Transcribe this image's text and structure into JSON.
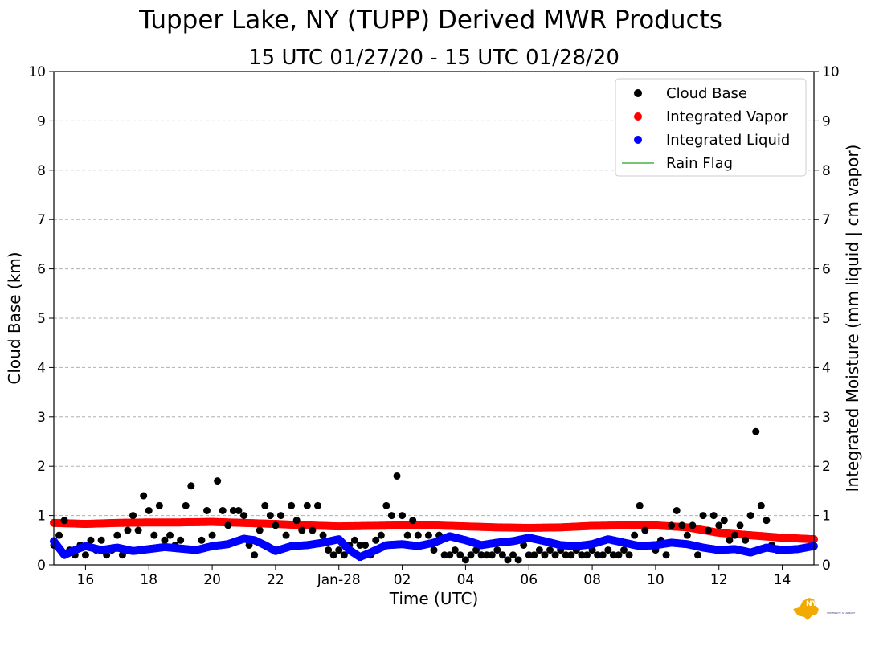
{
  "title": "Tupper Lake, NY (TUPP) Derived MWR Products",
  "subtitle": "15 UTC 01/27/20 - 15 UTC 01/28/20",
  "logo": {
    "text": "NYS Mesonet",
    "subtext": "UNIVERSITY AT ALBANY"
  },
  "chart_data": {
    "type": "scatter",
    "title": "Tupper Lake, NY (TUPP) Derived MWR Products",
    "subtitle": "15 UTC 01/27/20 - 15 UTC 01/28/20",
    "xlabel": "Time (UTC)",
    "ylabel": "Cloud Base (km)",
    "ylabel_right": "Integrated Moisture (mm liquid | cm vapor)",
    "x_range": [
      "2020-01-27 15:00",
      "2020-01-28 15:00"
    ],
    "x_ticks": [
      {
        "time": "2020-01-27 16:00",
        "label": "16"
      },
      {
        "time": "2020-01-27 18:00",
        "label": "18"
      },
      {
        "time": "2020-01-27 20:00",
        "label": "20"
      },
      {
        "time": "2020-01-27 22:00",
        "label": "22"
      },
      {
        "time": "2020-01-28 00:00",
        "label": "Jan-28"
      },
      {
        "time": "2020-01-28 02:00",
        "label": "02"
      },
      {
        "time": "2020-01-28 04:00",
        "label": "04"
      },
      {
        "time": "2020-01-28 06:00",
        "label": "06"
      },
      {
        "time": "2020-01-28 08:00",
        "label": "08"
      },
      {
        "time": "2020-01-28 10:00",
        "label": "10"
      },
      {
        "time": "2020-01-28 12:00",
        "label": "12"
      },
      {
        "time": "2020-01-28 14:00",
        "label": "14"
      }
    ],
    "ylim": [
      0,
      10
    ],
    "y_ticks": [
      "0",
      "1",
      "2",
      "3",
      "4",
      "5",
      "6",
      "7",
      "8",
      "9",
      "10"
    ],
    "ylim_right": [
      0,
      10
    ],
    "y_ticks_right": [
      "0",
      "1",
      "2",
      "3",
      "4",
      "5",
      "6",
      "7",
      "8",
      "9",
      "10"
    ],
    "grid": "horizontal dashed",
    "legend_position": "top-right",
    "series": [
      {
        "name": "Cloud Base",
        "color": "#000000",
        "marker": "circle",
        "points": [
          [
            "2020-01-27 15:00",
            0.4
          ],
          [
            "2020-01-27 15:10",
            0.6
          ],
          [
            "2020-01-27 15:20",
            0.9
          ],
          [
            "2020-01-27 15:30",
            0.3
          ],
          [
            "2020-01-27 15:40",
            0.2
          ],
          [
            "2020-01-27 15:50",
            0.4
          ],
          [
            "2020-01-27 16:00",
            0.2
          ],
          [
            "2020-01-27 16:10",
            0.5
          ],
          [
            "2020-01-27 16:20",
            0.3
          ],
          [
            "2020-01-27 16:30",
            0.5
          ],
          [
            "2020-01-27 16:40",
            0.2
          ],
          [
            "2020-01-27 16:50",
            0.3
          ],
          [
            "2020-01-27 17:00",
            0.6
          ],
          [
            "2020-01-27 17:10",
            0.2
          ],
          [
            "2020-01-27 17:20",
            0.7
          ],
          [
            "2020-01-27 17:30",
            1.0
          ],
          [
            "2020-01-27 17:40",
            0.7
          ],
          [
            "2020-01-27 17:50",
            1.4
          ],
          [
            "2020-01-27 18:00",
            1.1
          ],
          [
            "2020-01-27 18:10",
            0.6
          ],
          [
            "2020-01-27 18:20",
            1.2
          ],
          [
            "2020-01-27 18:30",
            0.5
          ],
          [
            "2020-01-27 18:40",
            0.6
          ],
          [
            "2020-01-27 18:50",
            0.4
          ],
          [
            "2020-01-27 19:00",
            0.5
          ],
          [
            "2020-01-27 19:10",
            1.2
          ],
          [
            "2020-01-27 19:20",
            1.6
          ],
          [
            "2020-01-27 19:30",
            0.3
          ],
          [
            "2020-01-27 19:40",
            0.5
          ],
          [
            "2020-01-27 19:50",
            1.1
          ],
          [
            "2020-01-27 20:00",
            0.6
          ],
          [
            "2020-01-27 20:10",
            1.7
          ],
          [
            "2020-01-27 20:20",
            1.1
          ],
          [
            "2020-01-27 20:30",
            0.8
          ],
          [
            "2020-01-27 20:40",
            1.1
          ],
          [
            "2020-01-27 20:50",
            1.1
          ],
          [
            "2020-01-27 21:00",
            1.0
          ],
          [
            "2020-01-27 21:10",
            0.4
          ],
          [
            "2020-01-27 21:20",
            0.2
          ],
          [
            "2020-01-27 21:30",
            0.7
          ],
          [
            "2020-01-27 21:40",
            1.2
          ],
          [
            "2020-01-27 21:50",
            1.0
          ],
          [
            "2020-01-27 22:00",
            0.8
          ],
          [
            "2020-01-27 22:10",
            1.0
          ],
          [
            "2020-01-27 22:20",
            0.6
          ],
          [
            "2020-01-27 22:30",
            1.2
          ],
          [
            "2020-01-27 22:40",
            0.9
          ],
          [
            "2020-01-27 22:50",
            0.7
          ],
          [
            "2020-01-27 23:00",
            1.2
          ],
          [
            "2020-01-27 23:10",
            0.7
          ],
          [
            "2020-01-27 23:20",
            1.2
          ],
          [
            "2020-01-27 23:30",
            0.6
          ],
          [
            "2020-01-27 23:40",
            0.3
          ],
          [
            "2020-01-27 23:50",
            0.2
          ],
          [
            "2020-01-28 00:00",
            0.3
          ],
          [
            "2020-01-28 00:10",
            0.2
          ],
          [
            "2020-01-28 00:20",
            0.4
          ],
          [
            "2020-01-28 00:30",
            0.5
          ],
          [
            "2020-01-28 00:40",
            0.4
          ],
          [
            "2020-01-28 00:50",
            0.4
          ],
          [
            "2020-01-28 01:00",
            0.2
          ],
          [
            "2020-01-28 01:10",
            0.5
          ],
          [
            "2020-01-28 01:20",
            0.6
          ],
          [
            "2020-01-28 01:30",
            1.2
          ],
          [
            "2020-01-28 01:40",
            1.0
          ],
          [
            "2020-01-28 01:50",
            1.8
          ],
          [
            "2020-01-28 02:00",
            1.0
          ],
          [
            "2020-01-28 02:10",
            0.6
          ],
          [
            "2020-01-28 02:20",
            0.9
          ],
          [
            "2020-01-28 02:30",
            0.6
          ],
          [
            "2020-01-28 02:40",
            0.4
          ],
          [
            "2020-01-28 02:50",
            0.6
          ],
          [
            "2020-01-28 03:00",
            0.3
          ],
          [
            "2020-01-28 03:10",
            0.6
          ],
          [
            "2020-01-28 03:20",
            0.2
          ],
          [
            "2020-01-28 03:30",
            0.2
          ],
          [
            "2020-01-28 03:40",
            0.3
          ],
          [
            "2020-01-28 03:50",
            0.2
          ],
          [
            "2020-01-28 04:00",
            0.1
          ],
          [
            "2020-01-28 04:10",
            0.2
          ],
          [
            "2020-01-28 04:20",
            0.3
          ],
          [
            "2020-01-28 04:30",
            0.2
          ],
          [
            "2020-01-28 04:40",
            0.2
          ],
          [
            "2020-01-28 04:50",
            0.2
          ],
          [
            "2020-01-28 05:00",
            0.3
          ],
          [
            "2020-01-28 05:10",
            0.2
          ],
          [
            "2020-01-28 05:20",
            0.1
          ],
          [
            "2020-01-28 05:30",
            0.2
          ],
          [
            "2020-01-28 05:40",
            0.1
          ],
          [
            "2020-01-28 05:50",
            0.4
          ],
          [
            "2020-01-28 06:00",
            0.2
          ],
          [
            "2020-01-28 06:10",
            0.2
          ],
          [
            "2020-01-28 06:20",
            0.3
          ],
          [
            "2020-01-28 06:30",
            0.2
          ],
          [
            "2020-01-28 06:40",
            0.3
          ],
          [
            "2020-01-28 06:50",
            0.2
          ],
          [
            "2020-01-28 07:00",
            0.3
          ],
          [
            "2020-01-28 07:10",
            0.2
          ],
          [
            "2020-01-28 07:20",
            0.2
          ],
          [
            "2020-01-28 07:30",
            0.3
          ],
          [
            "2020-01-28 07:40",
            0.2
          ],
          [
            "2020-01-28 07:50",
            0.2
          ],
          [
            "2020-01-28 08:00",
            0.3
          ],
          [
            "2020-01-28 08:10",
            0.2
          ],
          [
            "2020-01-28 08:20",
            0.2
          ],
          [
            "2020-01-28 08:30",
            0.3
          ],
          [
            "2020-01-28 08:40",
            0.2
          ],
          [
            "2020-01-28 08:50",
            0.2
          ],
          [
            "2020-01-28 09:00",
            0.3
          ],
          [
            "2020-01-28 09:10",
            0.2
          ],
          [
            "2020-01-28 09:20",
            0.6
          ],
          [
            "2020-01-28 09:30",
            1.2
          ],
          [
            "2020-01-28 09:40",
            0.7
          ],
          [
            "2020-01-28 09:50",
            0.4
          ],
          [
            "2020-01-28 10:00",
            0.3
          ],
          [
            "2020-01-28 10:10",
            0.5
          ],
          [
            "2020-01-28 10:20",
            0.2
          ],
          [
            "2020-01-28 10:30",
            0.8
          ],
          [
            "2020-01-28 10:40",
            1.1
          ],
          [
            "2020-01-28 10:50",
            0.8
          ],
          [
            "2020-01-28 11:00",
            0.6
          ],
          [
            "2020-01-28 11:10",
            0.8
          ],
          [
            "2020-01-28 11:20",
            0.2
          ],
          [
            "2020-01-28 11:30",
            1.0
          ],
          [
            "2020-01-28 11:40",
            0.7
          ],
          [
            "2020-01-28 11:50",
            1.0
          ],
          [
            "2020-01-28 12:00",
            0.8
          ],
          [
            "2020-01-28 12:10",
            0.9
          ],
          [
            "2020-01-28 12:20",
            0.5
          ],
          [
            "2020-01-28 12:30",
            0.6
          ],
          [
            "2020-01-28 12:40",
            0.8
          ],
          [
            "2020-01-28 12:50",
            0.5
          ],
          [
            "2020-01-28 13:00",
            1.0
          ],
          [
            "2020-01-28 13:10",
            2.7
          ],
          [
            "2020-01-28 13:20",
            1.2
          ],
          [
            "2020-01-28 13:30",
            0.9
          ],
          [
            "2020-01-28 13:40",
            0.4
          ],
          [
            "2020-01-28 13:50",
            0.3
          ]
        ]
      },
      {
        "name": "Integrated Vapor",
        "color": "#ff0000",
        "marker": "circle",
        "points": [
          [
            "2020-01-27 15:00",
            0.85
          ],
          [
            "2020-01-27 16:00",
            0.83
          ],
          [
            "2020-01-27 17:00",
            0.85
          ],
          [
            "2020-01-27 18:00",
            0.86
          ],
          [
            "2020-01-27 19:00",
            0.86
          ],
          [
            "2020-01-27 20:00",
            0.87
          ],
          [
            "2020-01-27 21:00",
            0.85
          ],
          [
            "2020-01-27 22:00",
            0.83
          ],
          [
            "2020-01-27 23:00",
            0.8
          ],
          [
            "2020-01-28 00:00",
            0.78
          ],
          [
            "2020-01-28 01:00",
            0.79
          ],
          [
            "2020-01-28 02:00",
            0.8
          ],
          [
            "2020-01-28 03:00",
            0.8
          ],
          [
            "2020-01-28 04:00",
            0.78
          ],
          [
            "2020-01-28 05:00",
            0.76
          ],
          [
            "2020-01-28 06:00",
            0.75
          ],
          [
            "2020-01-28 07:00",
            0.76
          ],
          [
            "2020-01-28 08:00",
            0.79
          ],
          [
            "2020-01-28 09:00",
            0.8
          ],
          [
            "2020-01-28 10:00",
            0.8
          ],
          [
            "2020-01-28 11:00",
            0.76
          ],
          [
            "2020-01-28 12:00",
            0.65
          ],
          [
            "2020-01-28 13:00",
            0.6
          ],
          [
            "2020-01-28 14:00",
            0.55
          ],
          [
            "2020-01-28 15:00",
            0.52
          ]
        ]
      },
      {
        "name": "Integrated Liquid",
        "color": "#0000ff",
        "marker": "circle",
        "points": [
          [
            "2020-01-27 15:00",
            0.48
          ],
          [
            "2020-01-27 15:20",
            0.2
          ],
          [
            "2020-01-27 15:40",
            0.3
          ],
          [
            "2020-01-27 16:00",
            0.38
          ],
          [
            "2020-01-27 16:30",
            0.3
          ],
          [
            "2020-01-27 17:00",
            0.35
          ],
          [
            "2020-01-27 17:30",
            0.28
          ],
          [
            "2020-01-27 18:00",
            0.32
          ],
          [
            "2020-01-27 18:30",
            0.36
          ],
          [
            "2020-01-27 19:00",
            0.33
          ],
          [
            "2020-01-27 19:30",
            0.3
          ],
          [
            "2020-01-27 20:00",
            0.38
          ],
          [
            "2020-01-27 20:30",
            0.42
          ],
          [
            "2020-01-27 21:00",
            0.53
          ],
          [
            "2020-01-27 21:20",
            0.5
          ],
          [
            "2020-01-27 21:40",
            0.4
          ],
          [
            "2020-01-27 22:00",
            0.28
          ],
          [
            "2020-01-27 22:30",
            0.38
          ],
          [
            "2020-01-27 23:00",
            0.4
          ],
          [
            "2020-01-27 23:30",
            0.45
          ],
          [
            "2020-01-28 00:00",
            0.52
          ],
          [
            "2020-01-28 00:20",
            0.3
          ],
          [
            "2020-01-28 00:40",
            0.16
          ],
          [
            "2020-01-28 01:00",
            0.25
          ],
          [
            "2020-01-28 01:30",
            0.4
          ],
          [
            "2020-01-28 02:00",
            0.42
          ],
          [
            "2020-01-28 02:30",
            0.38
          ],
          [
            "2020-01-28 03:00",
            0.45
          ],
          [
            "2020-01-28 03:30",
            0.58
          ],
          [
            "2020-01-28 04:00",
            0.5
          ],
          [
            "2020-01-28 04:30",
            0.4
          ],
          [
            "2020-01-28 05:00",
            0.45
          ],
          [
            "2020-01-28 05:30",
            0.48
          ],
          [
            "2020-01-28 06:00",
            0.55
          ],
          [
            "2020-01-28 06:30",
            0.48
          ],
          [
            "2020-01-28 07:00",
            0.4
          ],
          [
            "2020-01-28 07:30",
            0.38
          ],
          [
            "2020-01-28 08:00",
            0.42
          ],
          [
            "2020-01-28 08:30",
            0.52
          ],
          [
            "2020-01-28 09:00",
            0.45
          ],
          [
            "2020-01-28 09:30",
            0.38
          ],
          [
            "2020-01-28 10:00",
            0.4
          ],
          [
            "2020-01-28 10:30",
            0.45
          ],
          [
            "2020-01-28 11:00",
            0.42
          ],
          [
            "2020-01-28 11:30",
            0.35
          ],
          [
            "2020-01-28 12:00",
            0.3
          ],
          [
            "2020-01-28 12:30",
            0.32
          ],
          [
            "2020-01-28 13:00",
            0.25
          ],
          [
            "2020-01-28 13:30",
            0.35
          ],
          [
            "2020-01-28 14:00",
            0.3
          ],
          [
            "2020-01-28 14:30",
            0.32
          ],
          [
            "2020-01-28 15:00",
            0.38
          ]
        ]
      },
      {
        "name": "Rain Flag",
        "color": "#4daf4a",
        "marker": "line",
        "points": []
      }
    ]
  }
}
